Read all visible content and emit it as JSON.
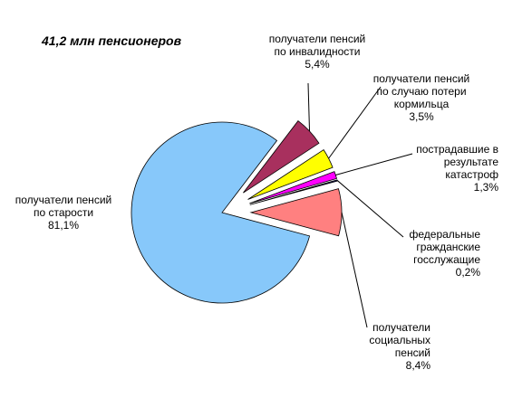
{
  "chart_data": {
    "type": "pie",
    "title": "41,2 млн пенсионеров",
    "categories": [
      "получатели пенсий\nпо старости",
      "получатели пенсий\nпо инвалидности",
      "получатели пенсий\nпо случаю потери\nкормильца",
      "пострадавшие в\nрезультате\nкатастроф",
      "федеральные\nгражданские\nгосслужащие",
      "получатели\nсоциальных\nпенсий"
    ],
    "values": [
      81.1,
      5.4,
      3.5,
      1.3,
      0.2,
      8.4
    ],
    "value_labels": [
      "81,1%",
      "5,4%",
      "3,5%",
      "1,3%",
      "0,2%",
      "8,4%"
    ],
    "colors": [
      "#87c8fa",
      "#a8305e",
      "#ffff00",
      "#ff00ff",
      "#1a1a80",
      "#ff8080"
    ]
  }
}
